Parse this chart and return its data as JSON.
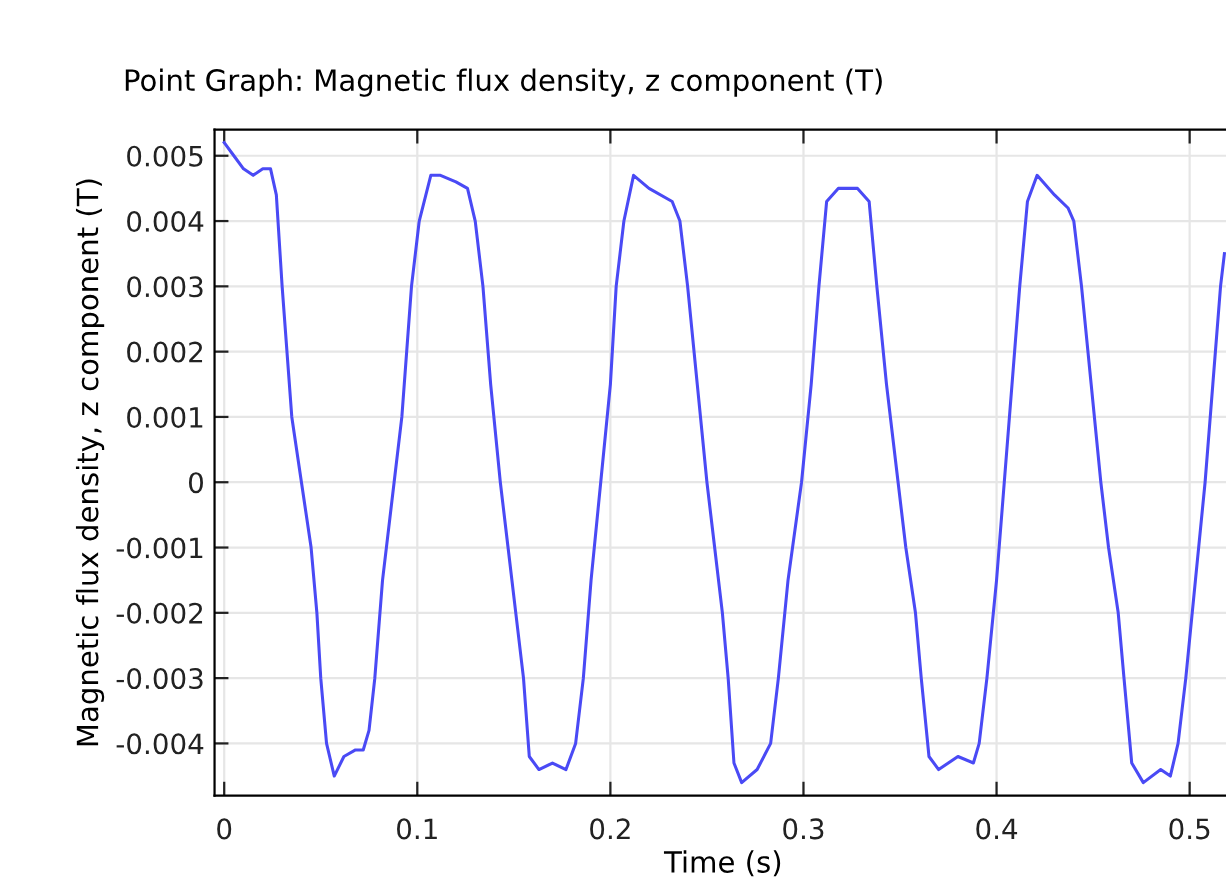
{
  "chart_data": {
    "type": "line",
    "title": "Point Graph: Magnetic flux density, z component (T)",
    "xlabel": "Time (s)",
    "ylabel": "Magnetic flux density, z component (T)",
    "x": [
      0,
      0.005,
      0.01,
      0.015,
      0.02,
      0.024,
      0.027,
      0.03,
      0.035,
      0.04,
      0.045,
      0.048,
      0.05,
      0.053,
      0.057,
      0.062,
      0.068,
      0.072,
      0.075,
      0.078,
      0.082,
      0.088,
      0.092,
      0.097,
      0.101,
      0.107,
      0.112,
      0.12,
      0.126,
      0.13,
      0.134,
      0.138,
      0.143,
      0.147,
      0.151,
      0.155,
      0.158,
      0.163,
      0.17,
      0.177,
      0.182,
      0.186,
      0.19,
      0.195,
      0.2,
      0.203,
      0.207,
      0.212,
      0.22,
      0.232,
      0.236,
      0.24,
      0.245,
      0.25,
      0.254,
      0.258,
      0.261,
      0.264,
      0.268,
      0.276,
      0.283,
      0.287,
      0.292,
      0.299,
      0.304,
      0.308,
      0.312,
      0.318,
      0.328,
      0.334,
      0.338,
      0.343,
      0.349,
      0.353,
      0.358,
      0.361,
      0.365,
      0.37,
      0.38,
      0.388,
      0.391,
      0.395,
      0.4,
      0.404,
      0.408,
      0.412,
      0.416,
      0.421,
      0.43,
      0.437,
      0.44,
      0.444,
      0.449,
      0.454,
      0.458,
      0.463,
      0.466,
      0.47,
      0.476,
      0.485,
      0.49,
      0.494,
      0.498,
      0.503,
      0.508,
      0.512,
      0.516,
      0.518
    ],
    "series": [
      {
        "color": "#4a4af5",
        "values": [
          0.0052,
          0.005,
          0.0048,
          0.0047,
          0.0048,
          0.0048,
          0.0044,
          0.003,
          0.001,
          0.0,
          -0.001,
          -0.002,
          -0.003,
          -0.004,
          -0.0045,
          -0.0042,
          -0.0041,
          -0.0041,
          -0.0038,
          -0.003,
          -0.0015,
          0.0,
          0.001,
          0.003,
          0.004,
          0.0047,
          0.0047,
          0.0046,
          0.0045,
          0.004,
          0.003,
          0.0015,
          0.0,
          -0.001,
          -0.002,
          -0.003,
          -0.0042,
          -0.0044,
          -0.0043,
          -0.0044,
          -0.004,
          -0.003,
          -0.0015,
          0.0,
          0.0015,
          0.003,
          0.004,
          0.0047,
          0.0045,
          0.0043,
          0.004,
          0.003,
          0.0015,
          0.0,
          -0.001,
          -0.002,
          -0.003,
          -0.0043,
          -0.0046,
          -0.0044,
          -0.004,
          -0.003,
          -0.0015,
          0.0,
          0.0015,
          0.003,
          0.0043,
          0.0045,
          0.0045,
          0.0043,
          0.003,
          0.0015,
          0.0,
          -0.001,
          -0.002,
          -0.003,
          -0.0042,
          -0.0044,
          -0.0042,
          -0.0043,
          -0.004,
          -0.003,
          -0.0015,
          0.0,
          0.0015,
          0.003,
          0.0043,
          0.0047,
          0.0044,
          0.0042,
          0.004,
          0.003,
          0.0015,
          0.0,
          -0.001,
          -0.002,
          -0.003,
          -0.0043,
          -0.0046,
          -0.0044,
          -0.0045,
          -0.004,
          -0.003,
          -0.0015,
          0.0,
          0.0015,
          0.003,
          0.0035
        ]
      }
    ],
    "xlim": [
      -0.005,
      0.522
    ],
    "ylim": [
      -0.0048,
      0.0054
    ],
    "xticks": [
      0,
      0.1,
      0.2,
      0.3,
      0.4,
      0.5
    ],
    "yticks": [
      -0.004,
      -0.003,
      -0.002,
      -0.001,
      0,
      0.001,
      0.002,
      0.003,
      0.004,
      0.005
    ],
    "grid": true,
    "marker": "none",
    "line_style": "solid"
  }
}
